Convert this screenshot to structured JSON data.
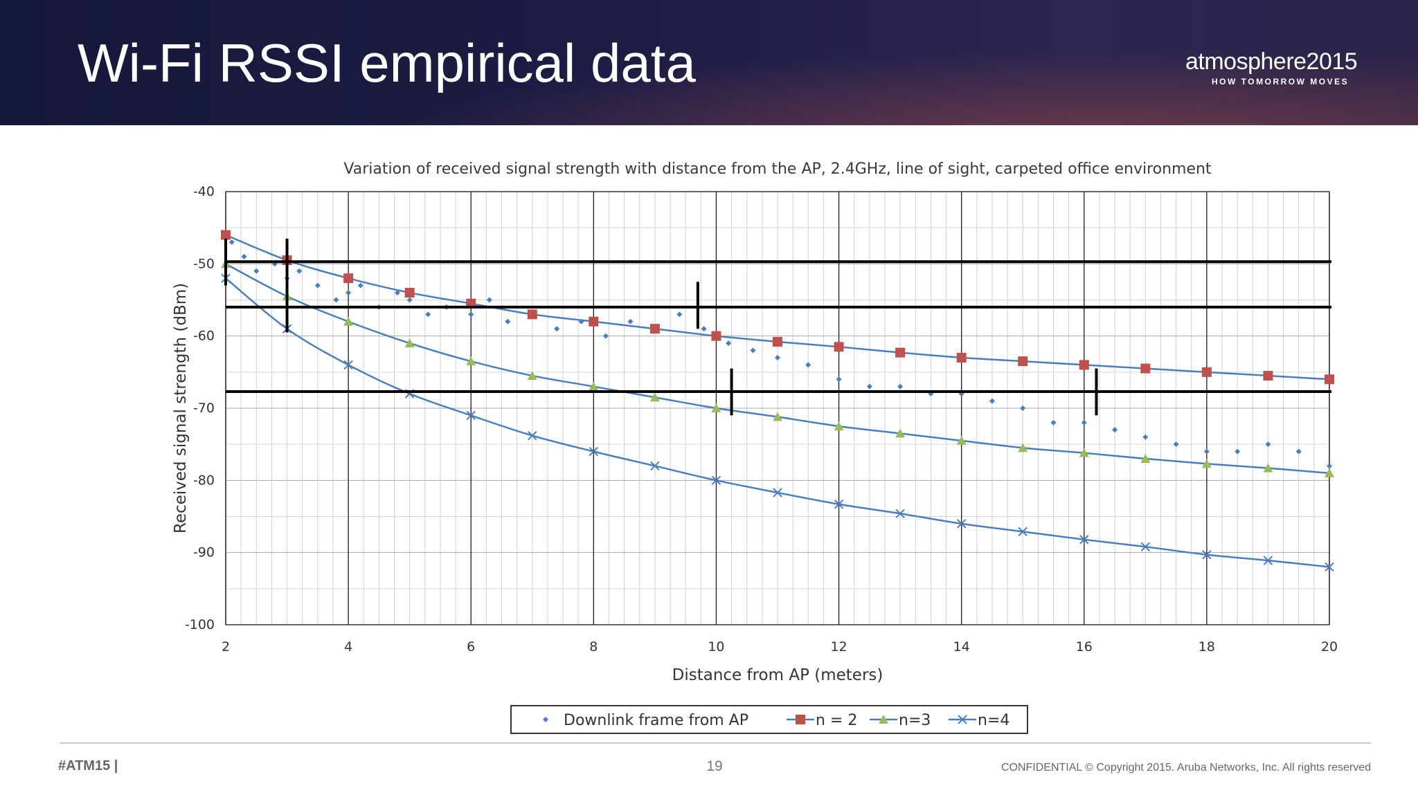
{
  "slide": {
    "title": "Wi-Fi RSSI empirical data",
    "brand_name": "atmosphere2015",
    "brand_tagline": "HOW TOMORROW MOVES",
    "footer_tag": "#ATM15 |",
    "page_number": "19",
    "copyright": "CONFIDENTIAL © Copyright 2015. Aruba Networks, Inc. All rights reserved"
  },
  "chart_data": {
    "type": "scatter",
    "title": "Variation of received signal strength with distance from the AP, 2.4GHz, line of sight, carpeted office environment",
    "xlabel": "Distance from AP (meters)",
    "ylabel": "Received signal strength (dBm)",
    "xlim": [
      2,
      20
    ],
    "ylim": [
      -100,
      -40
    ],
    "xticks": [
      2,
      4,
      6,
      8,
      10,
      12,
      14,
      16,
      18,
      20
    ],
    "yticks": [
      -40,
      -50,
      -60,
      -70,
      -80,
      -90,
      -100
    ],
    "grid": true,
    "legend_position": "bottom",
    "series": [
      {
        "name": "Downlink frame from AP",
        "kind": "scatter",
        "color": "#4a7ebb",
        "points": [
          [
            2.1,
            -47
          ],
          [
            2.3,
            -49
          ],
          [
            2.5,
            -51
          ],
          [
            2.8,
            -50
          ],
          [
            3.0,
            -52
          ],
          [
            3.2,
            -51
          ],
          [
            3.5,
            -53
          ],
          [
            3.8,
            -55
          ],
          [
            4.0,
            -54
          ],
          [
            4.2,
            -53
          ],
          [
            4.5,
            -56
          ],
          [
            4.8,
            -54
          ],
          [
            5.0,
            -55
          ],
          [
            5.3,
            -57
          ],
          [
            5.6,
            -56
          ],
          [
            6.0,
            -57
          ],
          [
            6.3,
            -55
          ],
          [
            6.6,
            -58
          ],
          [
            7.0,
            -57
          ],
          [
            7.4,
            -59
          ],
          [
            7.8,
            -58
          ],
          [
            8.2,
            -60
          ],
          [
            8.6,
            -58
          ],
          [
            9.0,
            -59
          ],
          [
            9.4,
            -57
          ],
          [
            9.8,
            -59
          ],
          [
            10.2,
            -61
          ],
          [
            10.6,
            -62
          ],
          [
            11.0,
            -63
          ],
          [
            11.5,
            -64
          ],
          [
            12.0,
            -66
          ],
          [
            12.5,
            -67
          ],
          [
            13.0,
            -67
          ],
          [
            13.5,
            -68
          ],
          [
            14.0,
            -68
          ],
          [
            14.5,
            -69
          ],
          [
            15.0,
            -70
          ],
          [
            15.5,
            -72
          ],
          [
            16.0,
            -72
          ],
          [
            16.5,
            -73
          ],
          [
            17.0,
            -74
          ],
          [
            17.5,
            -75
          ],
          [
            18.0,
            -76
          ],
          [
            18.5,
            -76
          ],
          [
            19.0,
            -75
          ],
          [
            19.5,
            -76
          ],
          [
            20.0,
            -78
          ]
        ]
      },
      {
        "name": "n = 2",
        "kind": "line-marker",
        "marker": "square",
        "color": "#c0504d",
        "x": [
          2,
          3,
          4,
          5,
          6,
          7,
          8,
          9,
          10,
          11,
          12,
          13,
          14,
          15,
          16,
          17,
          18,
          19,
          20
        ],
        "y": [
          -46,
          -49.5,
          -52,
          -54,
          -55.5,
          -57,
          -58,
          -59,
          -60,
          -60.8,
          -61.5,
          -62.3,
          -63,
          -63.5,
          -64,
          -64.5,
          -65,
          -65.5,
          -66
        ]
      },
      {
        "name": "n=3",
        "kind": "line-marker",
        "marker": "triangle",
        "color": "#9bbb59",
        "x": [
          2,
          3,
          4,
          5,
          6,
          7,
          8,
          9,
          10,
          11,
          12,
          13,
          14,
          15,
          16,
          17,
          18,
          19,
          20
        ],
        "y": [
          -50,
          -54.5,
          -58,
          -61,
          -63.5,
          -65.5,
          -67,
          -68.5,
          -70,
          -71.2,
          -72.5,
          -73.5,
          -74.5,
          -75.5,
          -76.2,
          -77,
          -77.7,
          -78.3,
          -79
        ]
      },
      {
        "name": "n=4",
        "kind": "line-marker",
        "marker": "x",
        "color": "#4a7ebb",
        "x": [
          2,
          3,
          4,
          5,
          6,
          7,
          8,
          9,
          10,
          11,
          12,
          13,
          14,
          15,
          16,
          17,
          18,
          19,
          20
        ],
        "y": [
          -52,
          -59,
          -64,
          -68,
          -71,
          -73.8,
          -76,
          -78,
          -80,
          -81.7,
          -83.3,
          -84.6,
          -86,
          -87.1,
          -88.2,
          -89.2,
          -90.3,
          -91.1,
          -92
        ]
      }
    ],
    "reference_lines_y": [
      -49.7,
      -56,
      -67.7
    ],
    "marker_bars": [
      {
        "x": 2.0,
        "y_range": [
          -46.5,
          -53
        ]
      },
      {
        "x": 3.0,
        "y_range": [
          -46.5,
          -59.5
        ]
      },
      {
        "x": 9.7,
        "y_range": [
          -52.5,
          -59
        ]
      },
      {
        "x": 10.25,
        "y_range": [
          -64.5,
          -71
        ]
      },
      {
        "x": 16.2,
        "y_range": [
          -64.5,
          -71
        ]
      }
    ]
  }
}
